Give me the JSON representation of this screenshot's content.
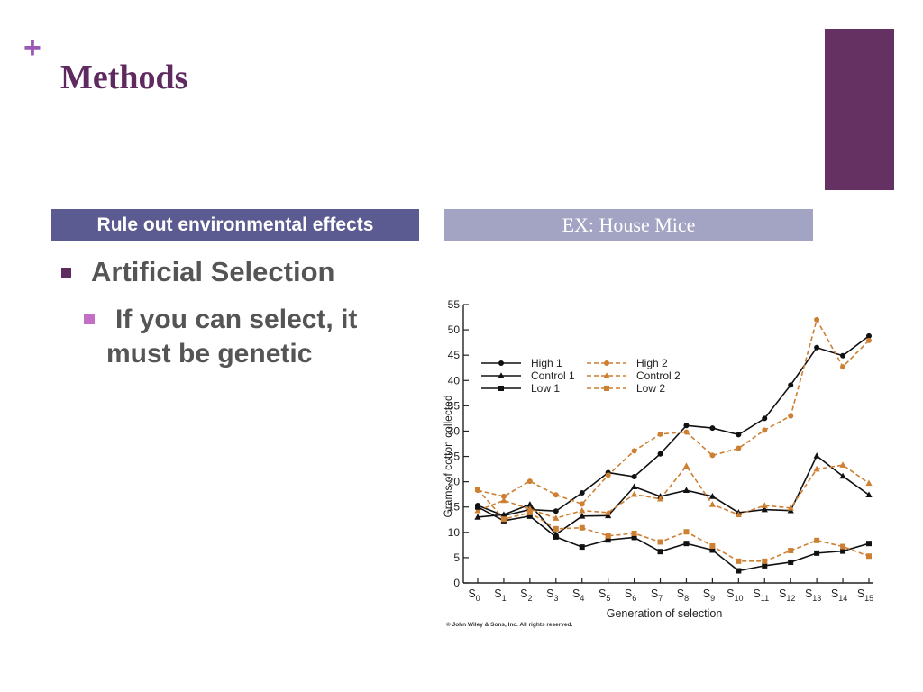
{
  "slide": {
    "plus_glyph": "+",
    "title": "Methods",
    "left_heading": "Rule out environmental effects",
    "right_heading": "EX: House Mice",
    "bullet_1": "Artificial Selection",
    "bullet_2_line1": "If you can select, it",
    "bullet_2_line2": "must be genetic",
    "colors": {
      "title": "#5e2a5f",
      "accent": "#643162",
      "heading_left": "#5b5b91",
      "heading_right": "#a3a3c4",
      "series_black": "#111111",
      "series_orange": "#cd7f32"
    }
  },
  "chart_data": {
    "type": "line",
    "xlabel": "Generation of selection",
    "ylabel": "Grams of cotton collected",
    "ylim": [
      0,
      55
    ],
    "yticks": [
      0,
      5,
      10,
      15,
      20,
      25,
      30,
      35,
      40,
      45,
      50,
      55
    ],
    "categories": [
      [
        "S",
        "0"
      ],
      [
        "S",
        "1"
      ],
      [
        "S",
        "2"
      ],
      [
        "S",
        "3"
      ],
      [
        "S",
        "4"
      ],
      [
        "S",
        "5"
      ],
      [
        "S",
        "6"
      ],
      [
        "S",
        "7"
      ],
      [
        "S",
        "8"
      ],
      [
        "S",
        "9"
      ],
      [
        "S",
        "10"
      ],
      [
        "S",
        "11"
      ],
      [
        "S",
        "12"
      ],
      [
        "S",
        "13"
      ],
      [
        "S",
        "14"
      ],
      [
        "S",
        "15"
      ]
    ],
    "legend_position": "top-left",
    "copyright": "© John Wiley & Sons, Inc. All rights reserved.",
    "series": [
      {
        "name": "High 1",
        "color": "#111111",
        "dashed": false,
        "marker": "circle",
        "values": [
          15.3,
          13.3,
          14.5,
          14.2,
          17.8,
          21.8,
          21.0,
          25.5,
          31.1,
          30.6,
          29.3,
          32.5,
          39.1,
          46.5,
          44.9,
          48.8
        ]
      },
      {
        "name": "High 2",
        "color": "#cd7f32",
        "dashed": true,
        "marker": "circle",
        "values": [
          18.3,
          17.1,
          20.1,
          17.4,
          15.6,
          21.3,
          26.1,
          29.4,
          29.8,
          25.2,
          26.6,
          30.2,
          33.0,
          52.0,
          42.7,
          47.9
        ]
      },
      {
        "name": "Control 1",
        "color": "#111111",
        "dashed": false,
        "marker": "triangle",
        "values": [
          13.0,
          13.5,
          15.5,
          9.6,
          13.2,
          13.3,
          19.0,
          17.1,
          18.3,
          17.1,
          13.9,
          14.5,
          14.3,
          25.1,
          21.1,
          17.4
        ]
      },
      {
        "name": "Control 2",
        "color": "#cd7f32",
        "dashed": true,
        "marker": "triangle",
        "values": [
          14.3,
          16.3,
          14.6,
          12.8,
          14.3,
          13.9,
          17.5,
          16.6,
          23.1,
          15.5,
          13.5,
          15.3,
          14.8,
          22.5,
          23.3,
          19.7
        ]
      },
      {
        "name": "Low 1",
        "color": "#111111",
        "dashed": false,
        "marker": "square",
        "values": [
          15.0,
          12.3,
          13.2,
          9.1,
          7.1,
          8.5,
          9.0,
          6.2,
          7.8,
          6.5,
          2.4,
          3.4,
          4.1,
          5.9,
          6.3,
          7.8
        ]
      },
      {
        "name": "Low 2",
        "color": "#cd7f32",
        "dashed": true,
        "marker": "square",
        "values": [
          18.5,
          12.6,
          13.9,
          10.7,
          10.9,
          9.3,
          9.8,
          8.1,
          10.1,
          7.3,
          4.3,
          4.3,
          6.4,
          8.4,
          7.2,
          5.3
        ]
      }
    ]
  }
}
